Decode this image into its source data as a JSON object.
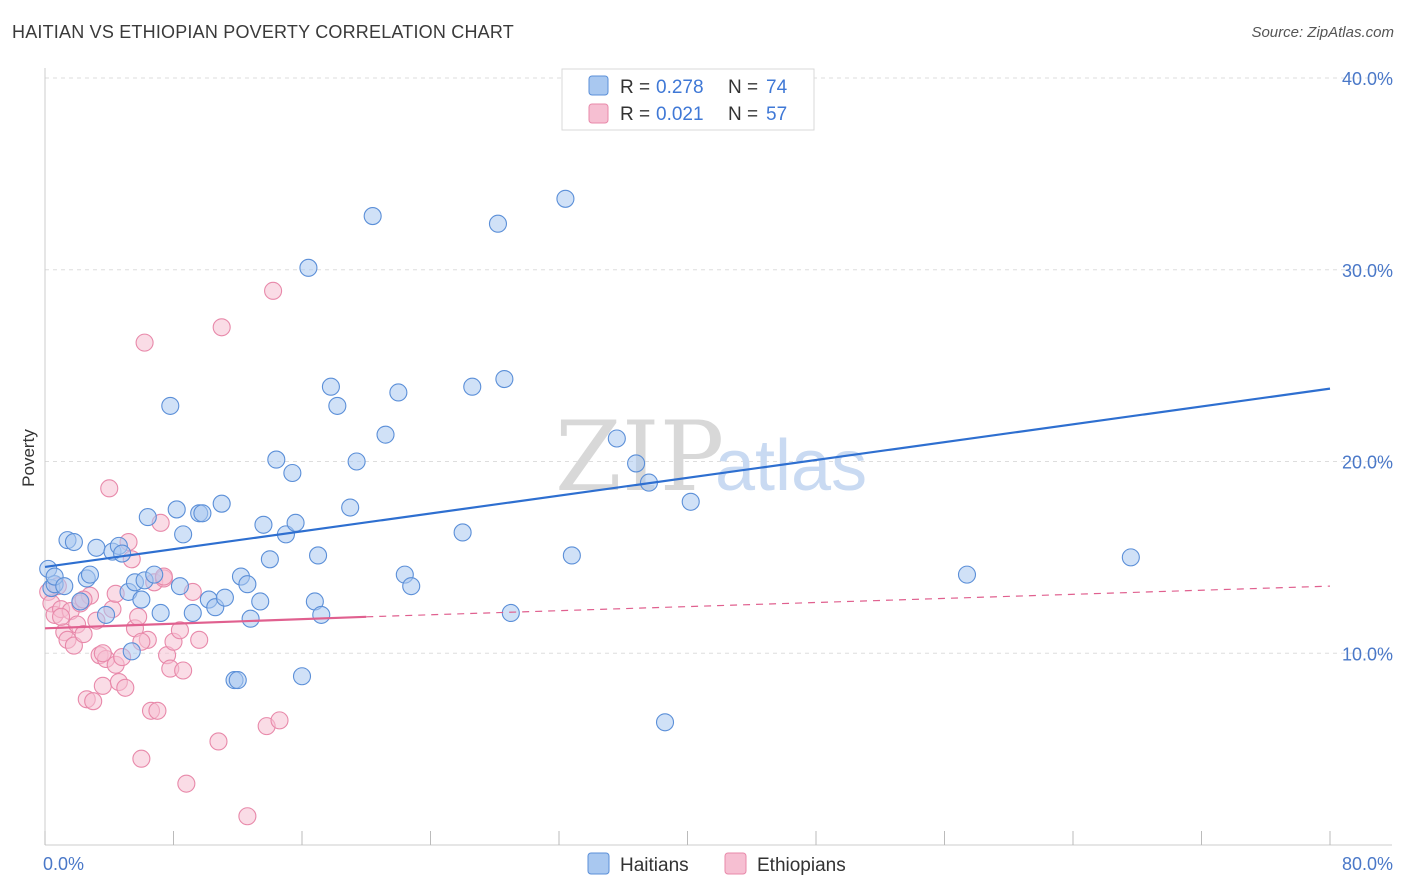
{
  "header": {
    "title": "HAITIAN VS ETHIOPIAN POVERTY CORRELATION CHART",
    "source": "Source: ZipAtlas.com"
  },
  "watermark": {
    "zip": "ZIP",
    "atlas": "atlas"
  },
  "legend": {
    "haitians": {
      "r_label": "R =",
      "r_value": "0.278",
      "n_label": "N =",
      "n_value": "74"
    },
    "ethiopians": {
      "r_label": "R =",
      "r_value": "0.021",
      "n_label": "N =",
      "n_value": "57"
    }
  },
  "bottom_legend": {
    "haitians": "Haitians",
    "ethiopians": "Ethiopians"
  },
  "colors": {
    "haitians_fill": "#a9c8f0",
    "haitians_stroke": "#5b8fd8",
    "haitians_line": "#2e6fd0",
    "ethiopians_fill": "#f6bfd2",
    "ethiopians_stroke": "#e889aa",
    "ethiopians_line": "#e0608f",
    "grid": "#dddddd",
    "tick_text": "#4a78c8"
  },
  "chart_data": {
    "type": "scatter",
    "title": "HAITIAN VS ETHIOPIAN POVERTY CORRELATION CHART",
    "xlabel": "",
    "ylabel": "Poverty",
    "xlim": [
      0,
      80
    ],
    "ylim": [
      0,
      40
    ],
    "x_tick_labels": [
      {
        "v": 0,
        "label": "0.0%"
      },
      {
        "v": 80,
        "label": "80.0%"
      }
    ],
    "y_tick_labels": [
      {
        "v": 10,
        "label": "10.0%"
      },
      {
        "v": 20,
        "label": "20.0%"
      },
      {
        "v": 30,
        "label": "30.0%"
      },
      {
        "v": 40,
        "label": "40.0%"
      }
    ],
    "series": [
      {
        "name": "Haitians",
        "r": 0.278,
        "n": 74,
        "trend": {
          "x0": 0,
          "y0": 14.5,
          "x1": 80,
          "y1": 23.8
        },
        "points": [
          [
            0.2,
            14.4
          ],
          [
            0.4,
            13.4
          ],
          [
            0.6,
            13.6
          ],
          [
            0.6,
            14.0
          ],
          [
            1.2,
            13.5
          ],
          [
            1.4,
            15.9
          ],
          [
            1.8,
            15.8
          ],
          [
            2.2,
            12.7
          ],
          [
            2.6,
            13.9
          ],
          [
            2.8,
            14.1
          ],
          [
            3.2,
            15.5
          ],
          [
            3.8,
            12.0
          ],
          [
            4.2,
            15.3
          ],
          [
            4.6,
            15.6
          ],
          [
            4.8,
            15.2
          ],
          [
            5.2,
            13.2
          ],
          [
            5.4,
            10.1
          ],
          [
            5.6,
            13.7
          ],
          [
            6.0,
            12.8
          ],
          [
            6.2,
            13.8
          ],
          [
            6.4,
            17.1
          ],
          [
            6.8,
            14.1
          ],
          [
            7.2,
            12.1
          ],
          [
            7.8,
            22.9
          ],
          [
            8.2,
            17.5
          ],
          [
            8.6,
            16.2
          ],
          [
            8.4,
            13.5
          ],
          [
            9.2,
            12.1
          ],
          [
            9.6,
            17.3
          ],
          [
            9.8,
            17.3
          ],
          [
            10.2,
            12.8
          ],
          [
            10.6,
            12.4
          ],
          [
            11.0,
            17.8
          ],
          [
            11.2,
            12.9
          ],
          [
            11.8,
            8.6
          ],
          [
            12.0,
            8.6
          ],
          [
            12.2,
            14.0
          ],
          [
            12.6,
            13.6
          ],
          [
            12.8,
            11.8
          ],
          [
            13.4,
            12.7
          ],
          [
            13.6,
            16.7
          ],
          [
            14.0,
            14.9
          ],
          [
            14.4,
            20.1
          ],
          [
            15.0,
            16.2
          ],
          [
            15.4,
            19.4
          ],
          [
            15.6,
            16.8
          ],
          [
            16.0,
            8.8
          ],
          [
            16.4,
            30.1
          ],
          [
            16.8,
            12.7
          ],
          [
            17.0,
            15.1
          ],
          [
            17.2,
            12.0
          ],
          [
            17.8,
            23.9
          ],
          [
            18.2,
            22.9
          ],
          [
            19.0,
            17.6
          ],
          [
            19.4,
            20.0
          ],
          [
            20.4,
            32.8
          ],
          [
            21.2,
            21.4
          ],
          [
            22.0,
            23.6
          ],
          [
            22.4,
            14.1
          ],
          [
            22.8,
            13.5
          ],
          [
            26.0,
            16.3
          ],
          [
            26.6,
            23.9
          ],
          [
            28.2,
            32.4
          ],
          [
            28.6,
            24.3
          ],
          [
            29.0,
            12.1
          ],
          [
            32.4,
            33.7
          ],
          [
            32.8,
            15.1
          ],
          [
            35.6,
            21.2
          ],
          [
            36.8,
            19.9
          ],
          [
            37.6,
            18.9
          ],
          [
            38.6,
            6.4
          ],
          [
            40.2,
            17.9
          ],
          [
            57.4,
            14.1
          ],
          [
            67.6,
            15.0
          ]
        ]
      },
      {
        "name": "Ethiopians",
        "r": 0.021,
        "n": 57,
        "trend": {
          "x0": 0,
          "y0": 11.3,
          "x1": 20,
          "y1": 11.9
        },
        "trend_extended": {
          "x0": 20,
          "y0": 11.9,
          "x1": 80,
          "y1": 13.5
        },
        "points": [
          [
            0.2,
            13.2
          ],
          [
            0.4,
            12.6
          ],
          [
            0.6,
            12.0
          ],
          [
            0.8,
            13.5
          ],
          [
            1.0,
            12.3
          ],
          [
            1.2,
            11.1
          ],
          [
            1.4,
            10.7
          ],
          [
            1.6,
            12.2
          ],
          [
            1.8,
            10.4
          ],
          [
            2.0,
            11.5
          ],
          [
            2.2,
            12.6
          ],
          [
            2.4,
            11.0
          ],
          [
            2.6,
            7.6
          ],
          [
            2.8,
            13.0
          ],
          [
            3.0,
            7.5
          ],
          [
            3.2,
            11.7
          ],
          [
            3.4,
            9.9
          ],
          [
            3.6,
            8.3
          ],
          [
            3.8,
            9.7
          ],
          [
            4.0,
            18.6
          ],
          [
            4.2,
            12.3
          ],
          [
            4.4,
            9.4
          ],
          [
            4.6,
            8.5
          ],
          [
            4.8,
            9.8
          ],
          [
            5.0,
            8.2
          ],
          [
            5.2,
            15.8
          ],
          [
            5.4,
            14.9
          ],
          [
            5.6,
            11.3
          ],
          [
            5.8,
            11.9
          ],
          [
            6.0,
            4.5
          ],
          [
            6.2,
            26.2
          ],
          [
            6.4,
            10.7
          ],
          [
            6.6,
            7.0
          ],
          [
            6.8,
            13.7
          ],
          [
            7.0,
            7.0
          ],
          [
            7.2,
            16.8
          ],
          [
            7.4,
            13.9
          ],
          [
            7.6,
            9.9
          ],
          [
            7.8,
            9.2
          ],
          [
            8.0,
            10.6
          ],
          [
            8.4,
            11.2
          ],
          [
            8.6,
            9.1
          ],
          [
            8.8,
            3.2
          ],
          [
            9.2,
            13.2
          ],
          [
            9.6,
            10.7
          ],
          [
            10.8,
            5.4
          ],
          [
            11.0,
            27.0
          ],
          [
            12.6,
            1.5
          ],
          [
            13.8,
            6.2
          ],
          [
            14.2,
            28.9
          ],
          [
            14.6,
            6.5
          ],
          [
            3.6,
            10.0
          ],
          [
            4.4,
            13.1
          ],
          [
            1.0,
            11.9
          ],
          [
            2.4,
            12.8
          ],
          [
            6.0,
            10.6
          ],
          [
            7.4,
            14.0
          ]
        ]
      }
    ]
  }
}
